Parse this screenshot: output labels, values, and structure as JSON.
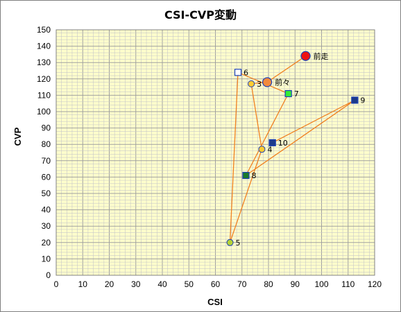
{
  "chart_data": {
    "type": "scatter",
    "title": "CSI-CVP変動",
    "xlabel": "CSI",
    "ylabel": "CVP",
    "xlim": [
      0,
      120
    ],
    "ylim": [
      0,
      150
    ],
    "xticks": [
      0,
      10,
      20,
      30,
      40,
      50,
      60,
      70,
      80,
      90,
      100,
      110,
      120
    ],
    "yticks": [
      0,
      10,
      20,
      30,
      40,
      50,
      60,
      70,
      80,
      90,
      100,
      110,
      120,
      130,
      140,
      150
    ],
    "grid": true,
    "colors": {
      "plot_background": "#ffffcc",
      "minor_grid": "#c8c8c8",
      "major_grid": "#a0a0a0",
      "connector_line": "#f08020"
    },
    "points": [
      {
        "label": "前走",
        "x": 94,
        "y": 134,
        "marker": "circle",
        "size": "large",
        "fill": "#ee1111",
        "stroke": "#1a3fb8"
      },
      {
        "label": "前々",
        "x": 79.5,
        "y": 118,
        "marker": "circle",
        "size": "large",
        "fill": "#f28a3c",
        "stroke": "#1a3fb8"
      },
      {
        "label": "3",
        "x": 73.5,
        "y": 117,
        "marker": "circle",
        "size": "small",
        "fill": "#ffcc33",
        "stroke": "#1a3fb8"
      },
      {
        "label": "4",
        "x": 77.5,
        "y": 77,
        "marker": "circle",
        "size": "small",
        "fill": "#ffcc33",
        "stroke": "#1a3fb8"
      },
      {
        "label": "5",
        "x": 65.5,
        "y": 20,
        "marker": "circle",
        "size": "small",
        "fill": "#b5d334",
        "stroke": "#1a3fb8"
      },
      {
        "label": "6",
        "x": 68.5,
        "y": 124,
        "marker": "square",
        "size": "small",
        "fill": "#ffffff",
        "stroke": "#1a3fb8"
      },
      {
        "label": "7",
        "x": 87.5,
        "y": 111,
        "marker": "square",
        "size": "small",
        "fill": "#33ee33",
        "stroke": "#1a3fb8"
      },
      {
        "label": "8",
        "x": 71.5,
        "y": 61,
        "marker": "square",
        "size": "small",
        "fill": "#1a7a2a",
        "stroke": "#1a3fb8"
      },
      {
        "label": "9",
        "x": 112.5,
        "y": 107,
        "marker": "square",
        "size": "small",
        "fill": "#1c3a8a",
        "stroke": "#1a3fb8"
      },
      {
        "label": "10",
        "x": 81.5,
        "y": 81,
        "marker": "square",
        "size": "small",
        "fill": "#1c3a8a",
        "stroke": "#1a3fb8"
      }
    ]
  }
}
